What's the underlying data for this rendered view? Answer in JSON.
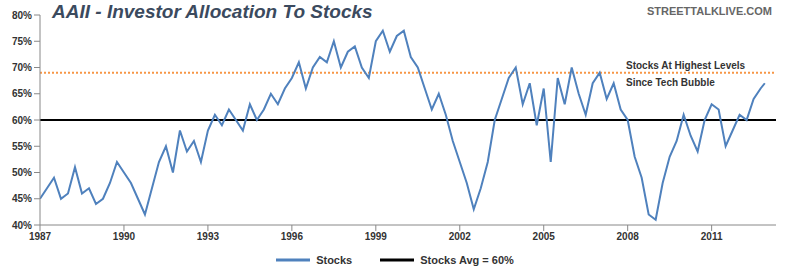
{
  "chart_data": {
    "type": "line",
    "title": "AAII - Investor Allocation To Stocks",
    "source": "STREETTALKLIVE.COM",
    "x": [
      1987.0,
      1987.25,
      1987.5,
      1987.75,
      1988.0,
      1988.25,
      1988.5,
      1988.75,
      1989.0,
      1989.25,
      1989.5,
      1989.75,
      1990.0,
      1990.25,
      1990.5,
      1990.75,
      1991.0,
      1991.25,
      1991.5,
      1991.75,
      1992.0,
      1992.25,
      1992.5,
      1992.75,
      1993.0,
      1993.25,
      1993.5,
      1993.75,
      1994.0,
      1994.25,
      1994.5,
      1994.75,
      1995.0,
      1995.25,
      1995.5,
      1995.75,
      1996.0,
      1996.25,
      1996.5,
      1996.75,
      1997.0,
      1997.25,
      1997.5,
      1997.75,
      1998.0,
      1998.25,
      1998.5,
      1998.75,
      1999.0,
      1999.25,
      1999.5,
      1999.75,
      2000.0,
      2000.25,
      2000.5,
      2000.75,
      2001.0,
      2001.25,
      2001.5,
      2001.75,
      2002.0,
      2002.25,
      2002.5,
      2002.75,
      2003.0,
      2003.25,
      2003.5,
      2003.75,
      2004.0,
      2004.25,
      2004.5,
      2004.75,
      2005.0,
      2005.25,
      2005.5,
      2005.75,
      2006.0,
      2006.25,
      2006.5,
      2006.75,
      2007.0,
      2007.25,
      2007.5,
      2007.75,
      2008.0,
      2008.25,
      2008.5,
      2008.75,
      2009.0,
      2009.25,
      2009.5,
      2009.75,
      2010.0,
      2010.25,
      2010.5,
      2010.75,
      2011.0,
      2011.25,
      2011.5,
      2011.75,
      2012.0,
      2012.25,
      2012.5,
      2012.75,
      2012.9
    ],
    "series": [
      {
        "name": "Stocks",
        "color": "#4f81bd",
        "values": [
          45,
          47,
          49,
          45,
          46,
          51,
          46,
          47,
          44,
          45,
          48,
          52,
          50,
          48,
          45,
          42,
          47,
          52,
          55,
          50,
          58,
          54,
          56,
          52,
          58,
          61,
          59,
          62,
          60,
          58,
          63,
          60,
          62,
          65,
          63,
          66,
          68,
          71,
          66,
          70,
          72,
          71,
          75,
          70,
          73,
          74,
          70,
          68,
          75,
          77,
          73,
          76,
          77,
          72,
          70,
          66,
          62,
          65,
          61,
          56,
          52,
          48,
          43,
          47,
          52,
          60,
          64,
          68,
          70,
          63,
          67,
          59,
          66,
          52,
          68,
          63,
          70,
          65,
          61,
          67,
          69,
          64,
          67,
          62,
          60,
          53,
          49,
          42,
          41,
          48,
          53,
          56,
          61,
          57,
          54,
          60,
          63,
          62,
          55,
          58,
          61,
          60,
          64,
          66,
          67
        ]
      }
    ],
    "reference_lines": [
      {
        "name": "Stocks Avg = 60%",
        "value": 60,
        "color": "#000000",
        "line_style": "solid"
      },
      {
        "value": 69,
        "color": "#f79646",
        "line_style": "dotted"
      }
    ],
    "annotations": [
      "Stocks At Highest Levels",
      "Since Tech Bubble"
    ],
    "xlim": [
      1987,
      2013.3
    ],
    "xticks": [
      1987,
      1990,
      1993,
      1996,
      1999,
      2002,
      2005,
      2008,
      2011
    ],
    "ylim": [
      40,
      80
    ],
    "yticks": [
      {
        "value": 40,
        "label": "40%"
      },
      {
        "value": 45,
        "label": "45%"
      },
      {
        "value": 50,
        "label": "50%"
      },
      {
        "value": 55,
        "label": "55%"
      },
      {
        "value": 60,
        "label": "60%"
      },
      {
        "value": 65,
        "label": "65%"
      },
      {
        "value": 70,
        "label": "70%"
      },
      {
        "value": 75,
        "label": "75%"
      },
      {
        "value": 80,
        "label": "80%"
      }
    ],
    "grid": false,
    "legend": "bottom"
  }
}
